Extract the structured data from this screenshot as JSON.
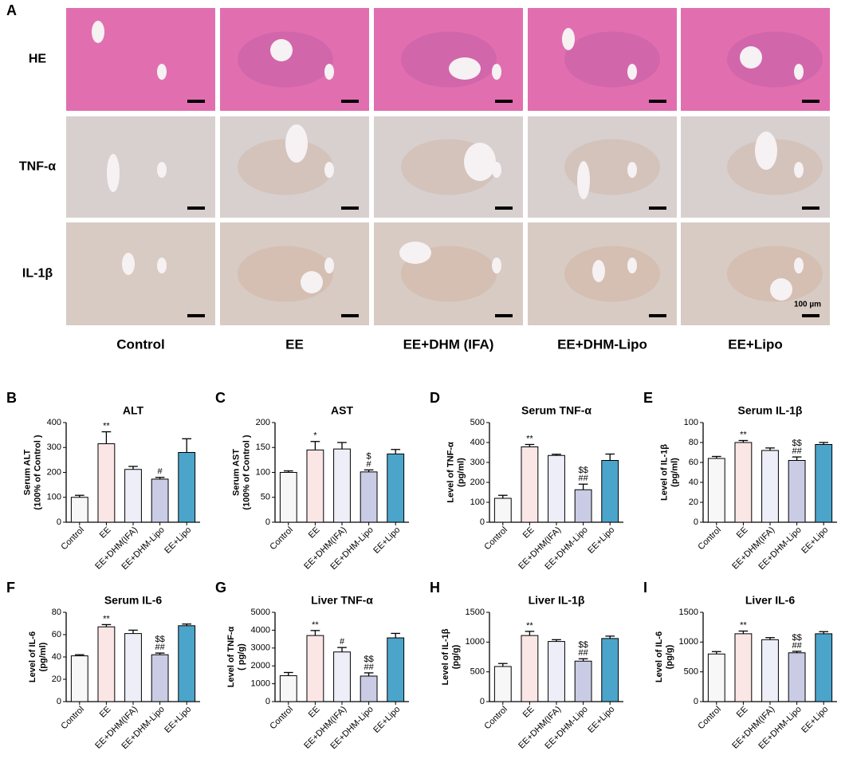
{
  "panel_a": {
    "label": "A",
    "rows": [
      "HE",
      "TNF-α",
      "IL-1β"
    ],
    "columns": [
      "Control",
      "EE",
      "EE+DHM (IFA)",
      "EE+DHM-Lipo",
      "EE+Lipo"
    ],
    "scale_bar": "100 µm"
  },
  "chart_data": [
    {
      "type": "bar",
      "panel": "B",
      "title": "ALT",
      "ylabel": [
        "Serum ALT",
        "(100% of Control )"
      ],
      "categories": [
        "Control",
        "EE",
        "EE+DHM(IFA)",
        "EE+DHM-Lipo",
        "EE+Lipo"
      ],
      "values": [
        100,
        315,
        212,
        173,
        280
      ],
      "errors": [
        8,
        48,
        12,
        7,
        55
      ],
      "annotations": [
        null,
        [
          "**"
        ],
        null,
        [
          "#"
        ],
        null
      ],
      "colors": [
        "#f7f7f7",
        "#fbe6e6",
        "#eeeef8",
        "#c9cce4",
        "#4ba4c9"
      ],
      "ylim": [
        0,
        400
      ],
      "yticks": [
        0,
        100,
        200,
        300,
        400
      ]
    },
    {
      "type": "bar",
      "panel": "C",
      "title": "AST",
      "ylabel": [
        "Serum AST",
        "(100% of Control )"
      ],
      "categories": [
        "Control",
        "EE",
        "EE+DHM(IFA)",
        "EE+DHM-Lipo",
        "EE+Lipo"
      ],
      "values": [
        100,
        145,
        147,
        101,
        137
      ],
      "errors": [
        3,
        17,
        13,
        4,
        9
      ],
      "annotations": [
        null,
        [
          "*"
        ],
        null,
        [
          "$",
          "#"
        ],
        null
      ],
      "colors": [
        "#f7f7f7",
        "#fbe6e6",
        "#eeeef8",
        "#c9cce4",
        "#4ba4c9"
      ],
      "ylim": [
        0,
        200
      ],
      "yticks": [
        0,
        50,
        100,
        150,
        200
      ]
    },
    {
      "type": "bar",
      "panel": "D",
      "title": "Serum TNF-α",
      "ylabel": [
        "Level of TNF-α",
        "(pg/ml)"
      ],
      "categories": [
        "Control",
        "EE",
        "EE+DHM(IFA)",
        "EE+DHM-Lipo",
        "EE+Lipo"
      ],
      "values": [
        120,
        378,
        335,
        163,
        310
      ],
      "errors": [
        15,
        12,
        6,
        28,
        32
      ],
      "annotations": [
        null,
        [
          "**"
        ],
        null,
        [
          "$$",
          "##"
        ],
        null
      ],
      "colors": [
        "#f7f7f7",
        "#fbe6e6",
        "#eeeef8",
        "#c9cce4",
        "#4ba4c9"
      ],
      "ylim": [
        0,
        500
      ],
      "yticks": [
        0,
        100,
        200,
        300,
        400,
        500
      ]
    },
    {
      "type": "bar",
      "panel": "E",
      "title": "Serum IL-1β",
      "ylabel": [
        "Level of IL-1β",
        "(pg/ml)"
      ],
      "categories": [
        "Control",
        "EE",
        "EE+DHM(IFA)",
        "EE+DHM-Lipo",
        "EE+Lipo"
      ],
      "values": [
        64,
        80,
        72,
        62,
        78
      ],
      "errors": [
        2,
        2,
        2.5,
        3.5,
        2
      ],
      "annotations": [
        null,
        [
          "**"
        ],
        null,
        [
          "$$",
          "##"
        ],
        null
      ],
      "colors": [
        "#f7f7f7",
        "#fbe6e6",
        "#eeeef8",
        "#c9cce4",
        "#4ba4c9"
      ],
      "ylim": [
        0,
        100
      ],
      "yticks": [
        0,
        20,
        40,
        60,
        80,
        100
      ]
    },
    {
      "type": "bar",
      "panel": "F",
      "title": "Serum IL-6",
      "ylabel": [
        "Level of IL-6",
        "(pg/ml)"
      ],
      "categories": [
        "Control",
        "EE",
        "EE+DHM(IFA)",
        "EE+DHM-Lipo",
        "EE+Lipo"
      ],
      "values": [
        41,
        67,
        61,
        42,
        68
      ],
      "errors": [
        1,
        2,
        3,
        1.5,
        1.5
      ],
      "annotations": [
        null,
        [
          "**"
        ],
        null,
        [
          "$$",
          "##"
        ],
        null
      ],
      "colors": [
        "#f7f7f7",
        "#fbe6e6",
        "#eeeef8",
        "#c9cce4",
        "#4ba4c9"
      ],
      "ylim": [
        0,
        80
      ],
      "yticks": [
        0,
        20,
        40,
        60,
        80
      ]
    },
    {
      "type": "bar",
      "panel": "G",
      "title": "Liver TNF-α",
      "ylabel": [
        "Level of TNF-α",
        "(  pg/g)"
      ],
      "categories": [
        "Control",
        "EE",
        "EE+DHM(IFA)",
        "EE+DHM-Lipo",
        "EE+Lipo"
      ],
      "values": [
        1450,
        3700,
        2780,
        1430,
        3570
      ],
      "errors": [
        180,
        280,
        250,
        180,
        250
      ],
      "annotations": [
        null,
        [
          "**"
        ],
        [
          "#"
        ],
        [
          "$$",
          "##"
        ],
        null
      ],
      "colors": [
        "#f7f7f7",
        "#fbe6e6",
        "#eeeef8",
        "#c9cce4",
        "#4ba4c9"
      ],
      "ylim": [
        0,
        5000
      ],
      "yticks": [
        0,
        1000,
        2000,
        3000,
        4000,
        5000
      ]
    },
    {
      "type": "bar",
      "panel": "H",
      "title": "Liver IL-1β",
      "ylabel": [
        "Level of IL-1β",
        "(pg/g)"
      ],
      "categories": [
        "Control",
        "EE",
        "EE+DHM(IFA)",
        "EE+DHM-Lipo",
        "EE+Lipo"
      ],
      "values": [
        590,
        1110,
        1010,
        680,
        1060
      ],
      "errors": [
        50,
        70,
        30,
        40,
        40
      ],
      "annotations": [
        null,
        [
          "**"
        ],
        null,
        [
          "$$",
          "##"
        ],
        null
      ],
      "colors": [
        "#f7f7f7",
        "#fbe6e6",
        "#eeeef8",
        "#c9cce4",
        "#4ba4c9"
      ],
      "ylim": [
        0,
        1500
      ],
      "yticks": [
        0,
        500,
        1000,
        1500
      ]
    },
    {
      "type": "bar",
      "panel": "I",
      "title": "Liver IL-6",
      "ylabel": [
        "Level of IL-6",
        "(pg/g)"
      ],
      "categories": [
        "Control",
        "EE",
        "EE+DHM(IFA)",
        "EE+DHM-Lipo",
        "EE+Lipo"
      ],
      "values": [
        800,
        1140,
        1040,
        820,
        1140
      ],
      "errors": [
        40,
        45,
        35,
        25,
        35
      ],
      "annotations": [
        null,
        [
          "**"
        ],
        null,
        [
          "$$",
          "##"
        ],
        null
      ],
      "colors": [
        "#f7f7f7",
        "#fbe6e6",
        "#eeeef8",
        "#c9cce4",
        "#4ba4c9"
      ],
      "ylim": [
        0,
        1500
      ],
      "yticks": [
        0,
        500,
        1000,
        1500
      ]
    }
  ]
}
